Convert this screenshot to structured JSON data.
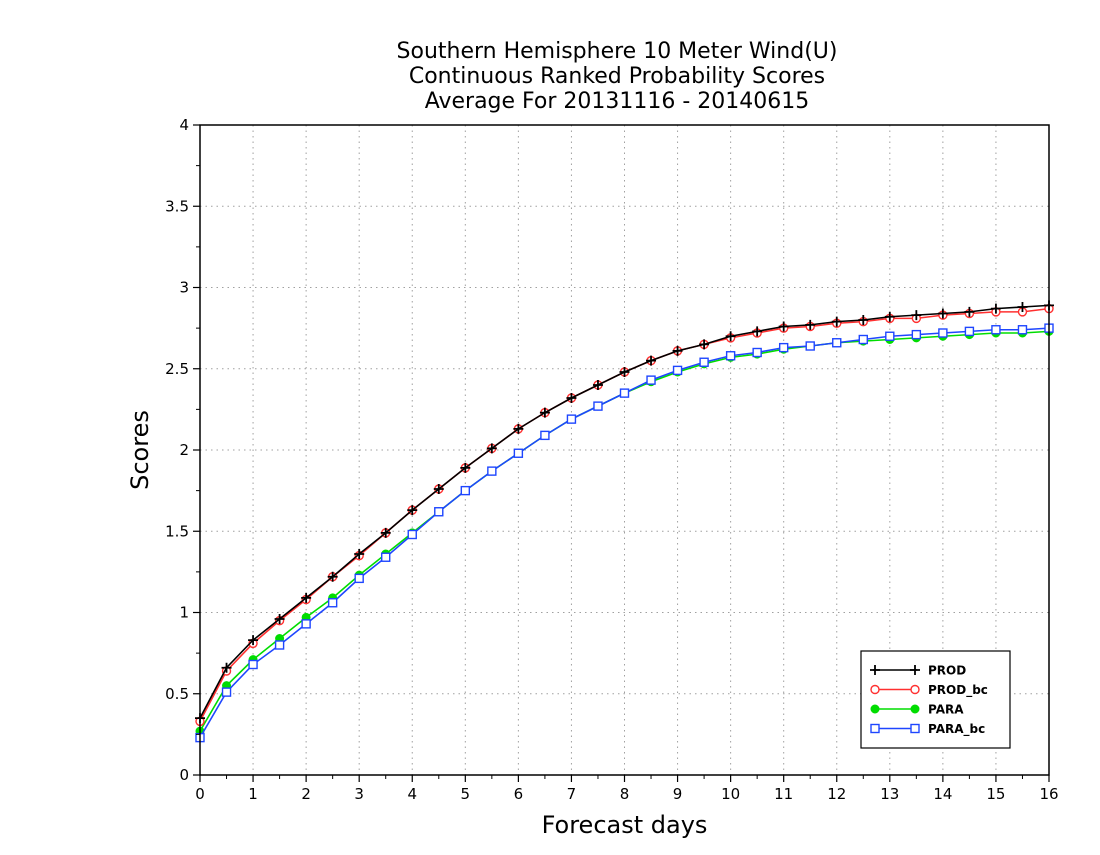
{
  "chart_data": {
    "type": "line",
    "title": [
      "Southern Hemisphere 10 Meter Wind(U)",
      "Continuous Ranked Probability Scores",
      "Average For 20131116 - 20140615"
    ],
    "xlabel": "Forecast days",
    "ylabel": "Scores",
    "xlim": [
      0,
      16
    ],
    "ylim": [
      0,
      4
    ],
    "x_ticks": [
      0,
      1,
      2,
      3,
      4,
      5,
      6,
      7,
      8,
      9,
      10,
      11,
      12,
      13,
      14,
      15,
      16
    ],
    "y_ticks": [
      0,
      0.5,
      1,
      1.5,
      2,
      2.5,
      3,
      3.5,
      4
    ],
    "y_tick_labels": [
      "0",
      "0.5",
      "1",
      "1.5",
      "2",
      "2.5",
      "3",
      "3.5",
      "4"
    ],
    "grid": true,
    "legend_position": "bottom-right",
    "x": [
      0,
      0.5,
      1,
      1.5,
      2,
      2.5,
      3,
      3.5,
      4,
      4.5,
      5,
      5.5,
      6,
      6.5,
      7,
      7.5,
      8,
      8.5,
      9,
      9.5,
      10,
      10.5,
      11,
      11.5,
      12,
      12.5,
      13,
      13.5,
      14,
      14.5,
      15,
      15.5,
      16
    ],
    "series": [
      {
        "name": "PROD",
        "color": "#000000",
        "marker": "plus",
        "values": [
          0.35,
          0.66,
          0.83,
          0.96,
          1.09,
          1.22,
          1.36,
          1.49,
          1.63,
          1.76,
          1.89,
          2.01,
          2.13,
          2.23,
          2.32,
          2.4,
          2.48,
          2.55,
          2.61,
          2.65,
          2.7,
          2.73,
          2.76,
          2.77,
          2.79,
          2.8,
          2.82,
          2.83,
          2.84,
          2.85,
          2.87,
          2.88,
          2.89
        ]
      },
      {
        "name": "PROD_bc",
        "color": "#ff3030",
        "marker": "open-circle",
        "values": [
          0.33,
          0.64,
          0.81,
          0.95,
          1.08,
          1.22,
          1.35,
          1.49,
          1.63,
          1.76,
          1.89,
          2.01,
          2.13,
          2.23,
          2.32,
          2.4,
          2.48,
          2.55,
          2.61,
          2.65,
          2.69,
          2.72,
          2.75,
          2.76,
          2.78,
          2.79,
          2.81,
          2.81,
          2.83,
          2.84,
          2.85,
          2.85,
          2.87
        ]
      },
      {
        "name": "PARA",
        "color": "#00dd00",
        "marker": "filled-circle",
        "values": [
          0.27,
          0.55,
          0.71,
          0.84,
          0.97,
          1.09,
          1.23,
          1.36,
          1.49,
          1.62,
          1.75,
          1.87,
          1.98,
          2.09,
          2.19,
          2.27,
          2.35,
          2.42,
          2.48,
          2.53,
          2.57,
          2.59,
          2.62,
          2.64,
          2.66,
          2.67,
          2.68,
          2.69,
          2.7,
          2.71,
          2.72,
          2.72,
          2.73
        ]
      },
      {
        "name": "PARA_bc",
        "color": "#1e46ff",
        "marker": "open-square",
        "values": [
          0.23,
          0.51,
          0.68,
          0.8,
          0.93,
          1.06,
          1.21,
          1.34,
          1.48,
          1.62,
          1.75,
          1.87,
          1.98,
          2.09,
          2.19,
          2.27,
          2.35,
          2.43,
          2.49,
          2.54,
          2.58,
          2.6,
          2.63,
          2.64,
          2.66,
          2.68,
          2.7,
          2.71,
          2.72,
          2.73,
          2.74,
          2.74,
          2.75
        ]
      }
    ]
  }
}
